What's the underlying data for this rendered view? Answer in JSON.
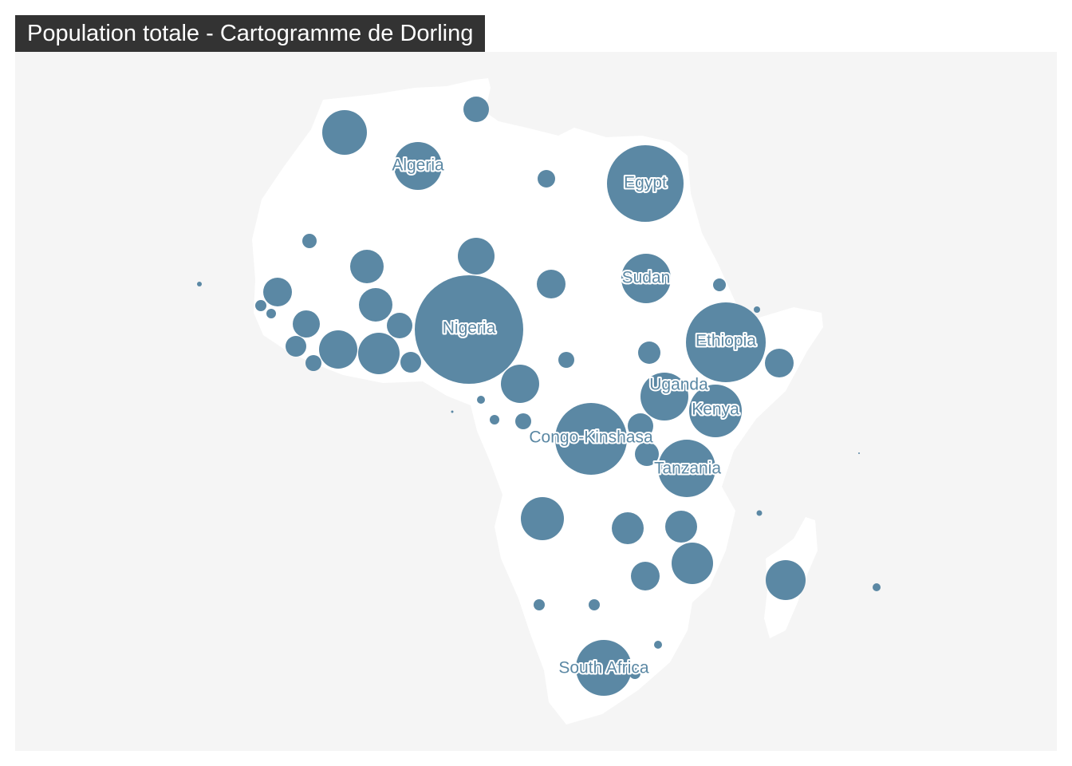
{
  "title": "Population totale - Cartogramme de Dorling",
  "colors": {
    "panel": "#f5f5f5",
    "land": "#ffffff",
    "bubble": "#5b88a4",
    "title_bg": "#333333",
    "title_fg": "#ffffff"
  },
  "labels": {
    "algeria": "Algeria",
    "egypt": "Egypt",
    "sudan": "Sudan",
    "nigeria": "Nigeria",
    "ethiopia": "Ethiopia",
    "uganda": "Uganda",
    "kenya": "Kenya",
    "congo_kinshasa": "Congo-Kinshasa",
    "tanzania": "Tanzania",
    "south_africa": "South Africa"
  }
}
